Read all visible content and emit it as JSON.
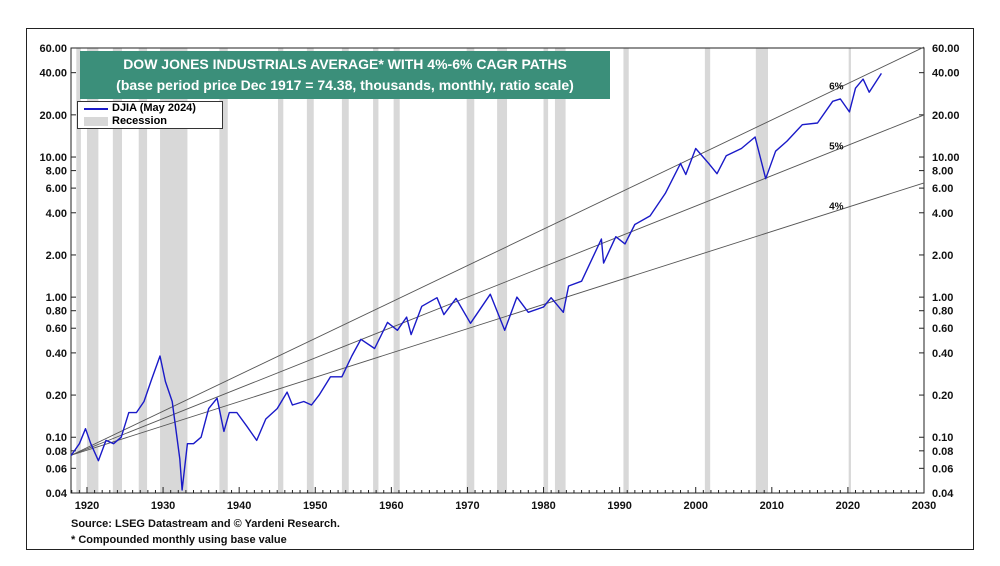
{
  "chart_data": {
    "type": "line",
    "title": "DOW JONES INDUSTRIALS AVERAGE* WITH 4%-6% CAGR PATHS",
    "subtitle": "(base period price Dec 1917 = 74.38, thousands, monthly, ratio scale)",
    "y_scale": "log",
    "xlim": [
      1917.9,
      2030
    ],
    "ylim": [
      0.04,
      60
    ],
    "x_ticks": [
      1920,
      1930,
      1940,
      1950,
      1960,
      1970,
      1980,
      1990,
      2000,
      2010,
      2020,
      2030
    ],
    "y_ticks": [
      0.04,
      0.06,
      0.08,
      0.1,
      0.2,
      0.4,
      0.6,
      0.8,
      1,
      2,
      4,
      6,
      8,
      10,
      20,
      40,
      60
    ],
    "y_tick_labels": [
      "0.04",
      "0.06",
      "0.08",
      "0.10",
      "0.20",
      "0.40",
      "0.60",
      "0.80",
      "1.00",
      "2.00",
      "4.00",
      "6.00",
      "8.00",
      "10.00",
      "20.00",
      "40.00",
      "60.00"
    ],
    "base": {
      "year": 1917.92,
      "value": 0.07438
    },
    "cagr_paths": [
      {
        "name": "6%",
        "rate": 0.06
      },
      {
        "name": "5%",
        "rate": 0.05
      },
      {
        "name": "4%",
        "rate": 0.04
      }
    ],
    "recessions": [
      [
        1918.6,
        1919.2
      ],
      [
        1920.0,
        1921.5
      ],
      [
        1923.4,
        1924.6
      ],
      [
        1926.8,
        1927.9
      ],
      [
        1929.6,
        1933.2
      ],
      [
        1937.4,
        1938.5
      ],
      [
        1945.1,
        1945.8
      ],
      [
        1948.9,
        1949.8
      ],
      [
        1953.5,
        1954.4
      ],
      [
        1957.6,
        1958.3
      ],
      [
        1960.3,
        1961.1
      ],
      [
        1969.9,
        1970.9
      ],
      [
        1973.9,
        1975.2
      ],
      [
        1980.0,
        1980.6
      ],
      [
        1981.5,
        1982.9
      ],
      [
        1990.5,
        1991.2
      ],
      [
        2001.2,
        2001.9
      ],
      [
        2007.9,
        2009.5
      ],
      [
        2020.1,
        2020.4
      ]
    ],
    "series": [
      {
        "name": "DJIA (May 2024)",
        "color": "#1a1ac8",
        "points": [
          [
            1917.9,
            0.074
          ],
          [
            1919.0,
            0.09
          ],
          [
            1919.8,
            0.115
          ],
          [
            1920.5,
            0.09
          ],
          [
            1921.5,
            0.068
          ],
          [
            1922.5,
            0.095
          ],
          [
            1923.5,
            0.09
          ],
          [
            1924.5,
            0.1
          ],
          [
            1925.5,
            0.15
          ],
          [
            1926.5,
            0.15
          ],
          [
            1927.5,
            0.18
          ],
          [
            1928.5,
            0.26
          ],
          [
            1929.6,
            0.38
          ],
          [
            1930.3,
            0.25
          ],
          [
            1931.2,
            0.18
          ],
          [
            1932.2,
            0.07
          ],
          [
            1932.5,
            0.042
          ],
          [
            1933.2,
            0.09
          ],
          [
            1934.0,
            0.09
          ],
          [
            1935.0,
            0.1
          ],
          [
            1936.0,
            0.16
          ],
          [
            1937.1,
            0.19
          ],
          [
            1938.0,
            0.11
          ],
          [
            1938.7,
            0.15
          ],
          [
            1939.7,
            0.15
          ],
          [
            1941.0,
            0.12
          ],
          [
            1942.3,
            0.095
          ],
          [
            1943.5,
            0.135
          ],
          [
            1945.0,
            0.16
          ],
          [
            1946.3,
            0.21
          ],
          [
            1947.0,
            0.17
          ],
          [
            1948.5,
            0.18
          ],
          [
            1949.5,
            0.17
          ],
          [
            1950.5,
            0.2
          ],
          [
            1952.0,
            0.27
          ],
          [
            1953.5,
            0.27
          ],
          [
            1954.8,
            0.38
          ],
          [
            1956.0,
            0.5
          ],
          [
            1957.8,
            0.43
          ],
          [
            1959.5,
            0.66
          ],
          [
            1960.8,
            0.58
          ],
          [
            1962.0,
            0.72
          ],
          [
            1962.6,
            0.54
          ],
          [
            1964.0,
            0.86
          ],
          [
            1966.0,
            0.99
          ],
          [
            1966.9,
            0.75
          ],
          [
            1968.5,
            0.98
          ],
          [
            1970.4,
            0.65
          ],
          [
            1973.0,
            1.05
          ],
          [
            1974.9,
            0.58
          ],
          [
            1976.5,
            1.0
          ],
          [
            1978.0,
            0.78
          ],
          [
            1980.0,
            0.85
          ],
          [
            1981.0,
            0.99
          ],
          [
            1982.6,
            0.78
          ],
          [
            1983.3,
            1.2
          ],
          [
            1985.0,
            1.3
          ],
          [
            1987.6,
            2.6
          ],
          [
            1987.9,
            1.75
          ],
          [
            1989.5,
            2.7
          ],
          [
            1990.7,
            2.4
          ],
          [
            1992.0,
            3.3
          ],
          [
            1994.0,
            3.8
          ],
          [
            1996.0,
            5.5
          ],
          [
            1998.0,
            9.0
          ],
          [
            1998.7,
            7.5
          ],
          [
            2000.0,
            11.5
          ],
          [
            2001.7,
            9.0
          ],
          [
            2002.8,
            7.6
          ],
          [
            2004.0,
            10.2
          ],
          [
            2006.0,
            11.5
          ],
          [
            2007.8,
            13.9
          ],
          [
            2009.2,
            7.0
          ],
          [
            2010.5,
            11.0
          ],
          [
            2012.0,
            13.0
          ],
          [
            2014.0,
            17.0
          ],
          [
            2016.0,
            17.5
          ],
          [
            2018.0,
            25.0
          ],
          [
            2019.0,
            26.0
          ],
          [
            2020.2,
            21.0
          ],
          [
            2021.0,
            31.0
          ],
          [
            2022.0,
            36.0
          ],
          [
            2022.8,
            29.0
          ],
          [
            2024.4,
            39.5
          ]
        ]
      }
    ],
    "legend": [
      {
        "label": "DJIA (May 2024)",
        "kind": "line"
      },
      {
        "label": "Recession",
        "kind": "band"
      }
    ],
    "source": "Source: LSEG Datastream and © Yardeni Research.",
    "footnote": "* Compounded monthly using base value",
    "colors": {
      "series": "#1a1ac8",
      "recession": "#d8d8d8",
      "cagr": "#555555",
      "title_bg": "#3b8f7a"
    }
  }
}
